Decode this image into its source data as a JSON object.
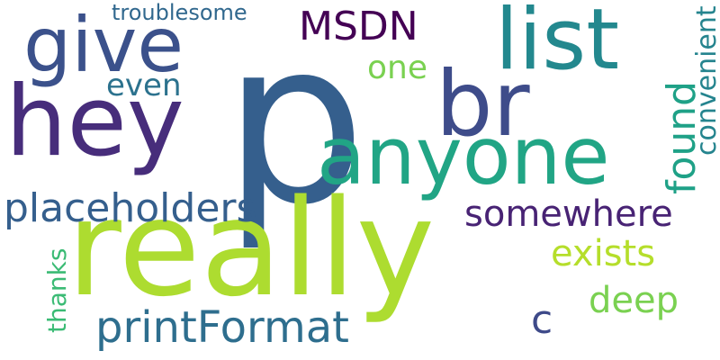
{
  "words": [
    {
      "text": "p",
      "color": "#355f8d"
    },
    {
      "text": "really",
      "color": "#addc30"
    },
    {
      "text": "hey",
      "color": "#472d7b"
    },
    {
      "text": "anyone",
      "color": "#21a585"
    },
    {
      "text": "give",
      "color": "#3b518b"
    },
    {
      "text": "list",
      "color": "#23888e"
    },
    {
      "text": "br",
      "color": "#3e4c8a"
    },
    {
      "text": "printFormat",
      "color": "#2e6e8e"
    },
    {
      "text": "placeholders",
      "color": "#355f8d"
    },
    {
      "text": "somewhere",
      "color": "#482374"
    },
    {
      "text": "exists",
      "color": "#b5de2b"
    },
    {
      "text": "deep",
      "color": "#7ad151"
    },
    {
      "text": "found",
      "color": "#1fa187"
    },
    {
      "text": "MSDN",
      "color": "#440154"
    },
    {
      "text": "one",
      "color": "#7ad151"
    },
    {
      "text": "even",
      "color": "#2c728e"
    },
    {
      "text": "troublesome",
      "color": "#31688e"
    },
    {
      "text": "convenient",
      "color": "#25848e"
    },
    {
      "text": "thanks",
      "color": "#3bbb75"
    },
    {
      "text": "c",
      "color": "#3e4a89"
    }
  ]
}
